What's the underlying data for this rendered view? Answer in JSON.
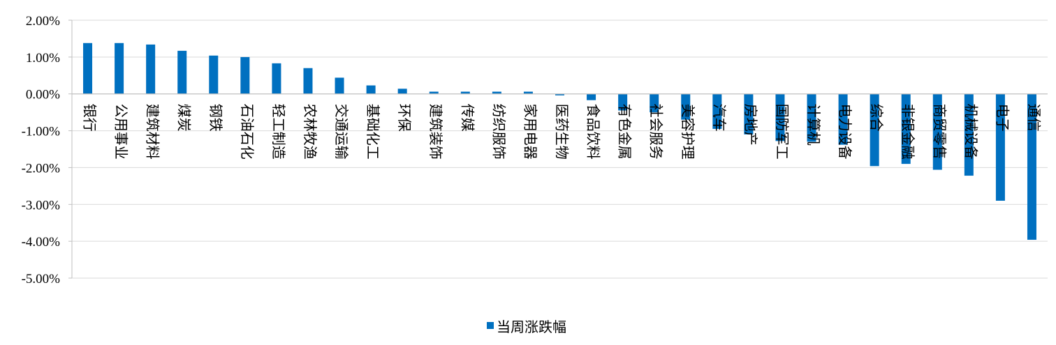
{
  "chart_data": {
    "type": "bar",
    "categories": [
      "银行",
      "公用事业",
      "建筑材料",
      "煤炭",
      "钢铁",
      "石油石化",
      "轻工制造",
      "农林牧渔",
      "交通运输",
      "基础化工",
      "环保",
      "建筑装饰",
      "传媒",
      "纺织服饰",
      "家用电器",
      "医药生物",
      "食品饮料",
      "有色金属",
      "社会服务",
      "美容护理",
      "汽车",
      "房地产",
      "国防军工",
      "计算机",
      "电力设备",
      "综合",
      "非银金融",
      "商贸零售",
      "机械设备",
      "电子",
      "通信"
    ],
    "series": [
      {
        "name": "当周涨跌幅",
        "values": [
          1.38,
          1.38,
          1.34,
          1.17,
          1.04,
          1.0,
          0.83,
          0.7,
          0.44,
          0.23,
          0.14,
          0.06,
          0.06,
          0.06,
          0.06,
          -0.04,
          -0.17,
          -0.45,
          -0.5,
          -0.7,
          -0.95,
          -1.1,
          -1.28,
          -1.3,
          -1.38,
          -1.96,
          -1.9,
          -2.06,
          -2.22,
          -2.9,
          -3.96
        ]
      }
    ],
    "ylim": [
      -5,
      2
    ],
    "yticks": [
      "2.00%",
      "1.00%",
      "0.00%",
      "-1.00%",
      "-2.00%",
      "-3.00%",
      "-4.00%",
      "-5.00%"
    ],
    "grid": true,
    "legend_position": "bottom-center",
    "bar_color": "#0070c0"
  }
}
